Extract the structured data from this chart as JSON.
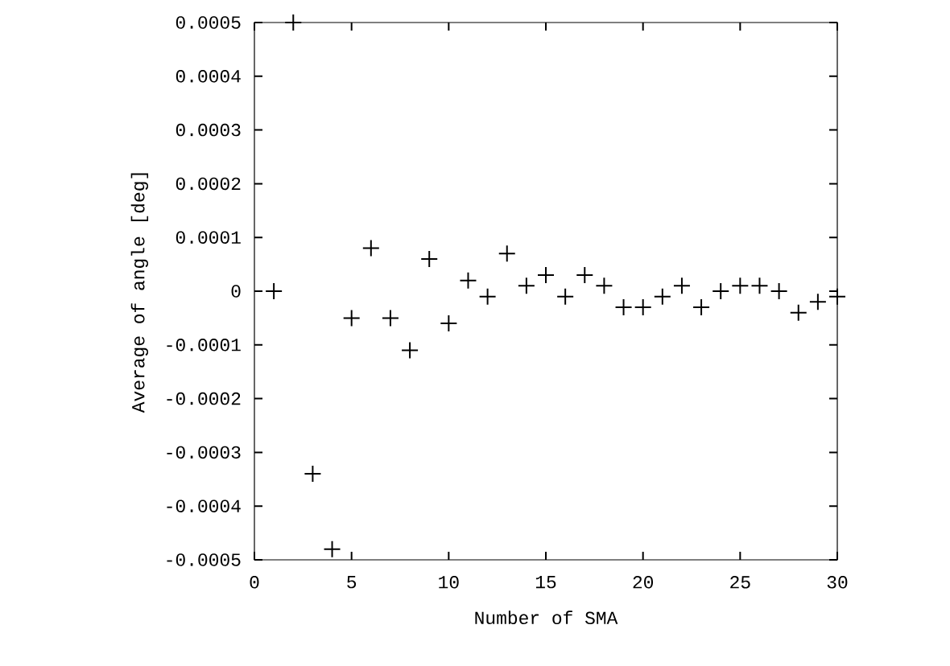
{
  "chart_data": {
    "type": "scatter",
    "xlabel": "Number of SMA",
    "ylabel": "Average of angle [deg]",
    "x": [
      1,
      2,
      3,
      4,
      5,
      6,
      7,
      8,
      9,
      10,
      11,
      12,
      13,
      14,
      15,
      16,
      17,
      18,
      19,
      20,
      21,
      22,
      23,
      24,
      25,
      26,
      27,
      28,
      29,
      30
    ],
    "values": [
      0,
      0.0005,
      -0.00034,
      -0.00048,
      -5e-05,
      8e-05,
      -5e-05,
      -0.00011,
      6e-05,
      -6e-05,
      2e-05,
      -1e-05,
      7e-05,
      1e-05,
      3e-05,
      -1e-05,
      3e-05,
      1e-05,
      -3e-05,
      -3e-05,
      -1e-05,
      1e-05,
      -3e-05,
      0,
      1e-05,
      1e-05,
      0,
      -4e-05,
      -2e-05,
      -1e-05
    ],
    "color": "#000000",
    "marker": "cross",
    "xlim": [
      0,
      30
    ],
    "xticks": [
      0,
      5,
      10,
      15,
      20,
      25,
      30
    ],
    "ylim": [
      -0.0005,
      0.0005
    ],
    "yticks": [
      -0.0005,
      -0.0004,
      -0.0003,
      -0.0002,
      -0.0001,
      0,
      0.0001,
      0.0002,
      0.0003,
      0.0004,
      0.0005
    ]
  }
}
